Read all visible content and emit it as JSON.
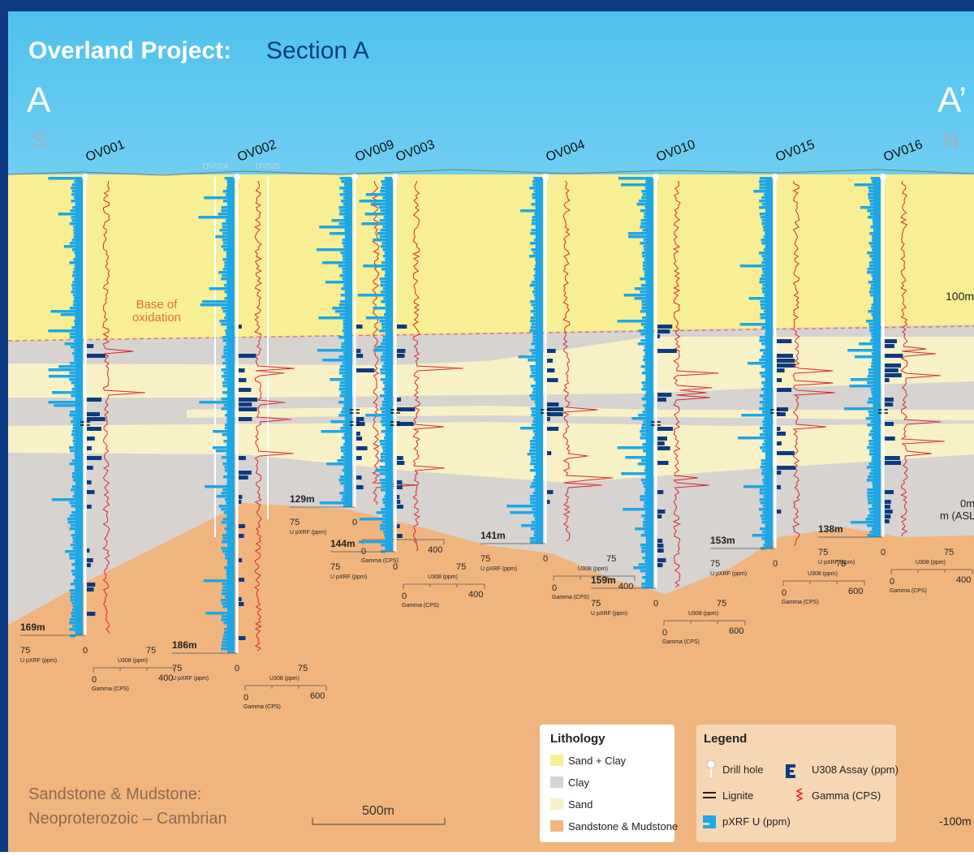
{
  "title": {
    "project": "Overland Project:",
    "section": "Section A"
  },
  "section_ends": {
    "start": "A",
    "end": "A’",
    "south": "S",
    "north": "N"
  },
  "holes": [
    {
      "name": "OV001",
      "depth": "169m",
      "pxrf_max": "75",
      "pxrf_label": "U pXRF (ppm)",
      "zero": "0",
      "u308_max": "75",
      "u308_label": "U308 (ppm)",
      "gamma_zero": "0",
      "gamma_max": "400",
      "gamma_label": "Gamma (CPS)"
    },
    {
      "name": "OV002",
      "depth": "186m",
      "pxrf_max": "75",
      "pxrf_label": "U pXRF (ppm)",
      "zero": "0",
      "u308_max": "75",
      "u308_label": "U308 (ppm)",
      "gamma_zero": "0",
      "gamma_max": "600",
      "gamma_label": "Gamma (CPS)"
    },
    {
      "name": "OV009",
      "depth": "129m",
      "pxrf_max": "75",
      "pxrf_label": "U pXRF (ppm)",
      "zero": "0",
      "gamma_zero": "0",
      "gamma_max": "400",
      "gamma_label": "Gamma (CPS)"
    },
    {
      "name": "OV003",
      "depth": "144m",
      "pxrf_max": "75",
      "pxrf_label": "U pXRF (ppm)",
      "zero": "0",
      "u308_max": "75",
      "u308_label": "U308 (ppm)",
      "gamma_zero": "0",
      "gamma_max": "400",
      "gamma_label": "Gamma (CPS)"
    },
    {
      "name": "OV004",
      "depth": "141m",
      "pxrf_max": "75",
      "pxrf_label": "U pXRF (ppm)",
      "zero": "0",
      "u308_max": "75",
      "u308_label": "U308 (ppm)",
      "gamma_zero": "0",
      "gamma_max": "400",
      "gamma_label": "Gamma (CPS)"
    },
    {
      "name": "OV010",
      "depth": "159m",
      "pxrf_max": "75",
      "pxrf_label": "U pXRF (ppm)",
      "zero": "0",
      "u308_max": "75",
      "u308_label": "U308 (ppm)",
      "gamma_zero": "0",
      "gamma_max": "600",
      "gamma_label": "Gamma (CPS)"
    },
    {
      "name": "OV015",
      "depth": "153m",
      "pxrf_max": "75",
      "pxrf_label": "U pXRF (ppm)",
      "zero": "0",
      "u308_max": "75",
      "u308_label": "U308 (ppm)",
      "gamma_zero": "0",
      "gamma_max": "600",
      "gamma_label": "Gamma (CPS)"
    },
    {
      "name": "OV016",
      "depth": "138m",
      "pxrf_max": "75",
      "pxrf_label": "U pXRF (ppm)",
      "zero": "0",
      "u308_max": "75",
      "u308_label": "U308 (ppm)",
      "gamma_zero": "0",
      "gamma_max": "400",
      "gamma_label": "Gamma (CPS)"
    }
  ],
  "minor_holes": [
    "OV024",
    "OV025"
  ],
  "annotations": {
    "oxidation": [
      "Base of",
      "oxidation"
    ],
    "basement": [
      "Sandstone & Mudstone:",
      "Neoproterozoic – Cambrian"
    ],
    "scale_bar": "500m",
    "elevation": [
      "100m",
      "0m",
      "m (ASL)",
      "-100m"
    ]
  },
  "lithology": {
    "title": "Lithology",
    "items": [
      "Sand + Clay",
      "Clay",
      "Sand",
      "Sandstone & Mudstone"
    ]
  },
  "legend": {
    "title": "Legend",
    "items": [
      "Drill hole",
      "U308 Assay (ppm)",
      "Lignite",
      "Gamma (CPS)",
      "pXRF U (ppm)"
    ]
  }
}
